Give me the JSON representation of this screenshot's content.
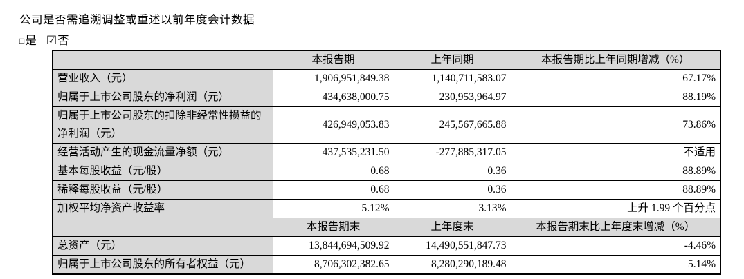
{
  "intro": {
    "question": "公司是否需追溯调整或重述以前年度会计数据",
    "yes_label": "是",
    "no_label": "否",
    "unchecked_glyph": "□",
    "checked_glyph": "☑",
    "yes_checked": false,
    "no_checked": true
  },
  "colors": {
    "cell_gray": "#d9d9d9",
    "border": "#000000",
    "text": "#000000"
  },
  "table": {
    "header1": [
      "",
      "本报告期",
      "上年同期",
      "本报告期比上年同期增减（%）"
    ],
    "rows1": [
      {
        "label": "营业收入（元）",
        "current": "1,906,951,849.38",
        "prior": "1,140,711,583.07",
        "change": "67.17%"
      },
      {
        "label": "归属于上市公司股东的净利润（元）",
        "current": "434,638,000.75",
        "prior": "230,953,964.97",
        "change": "88.19%"
      },
      {
        "label": "归属于上市公司股东的扣除非经常性损益的净利润（元）",
        "current": "426,949,053.83",
        "prior": "245,567,665.88",
        "change": "73.86%"
      },
      {
        "label": "经营活动产生的现金流量净额（元）",
        "current": "437,535,231.50",
        "prior": "-277,885,317.05",
        "change": "不适用"
      },
      {
        "label": "基本每股收益（元/股）",
        "current": "0.68",
        "prior": "0.36",
        "change": "88.89%"
      },
      {
        "label": "稀释每股收益（元/股）",
        "current": "0.68",
        "prior": "0.36",
        "change": "88.89%"
      },
      {
        "label": "加权平均净资产收益率",
        "current": "5.12%",
        "prior": "3.13%",
        "change": "上升 1.99 个百分点"
      }
    ],
    "header2": [
      "",
      "本报告期末",
      "上年度末",
      "本报告期末比上年度末增减（%）"
    ],
    "rows2": [
      {
        "label": "总资产（元）",
        "current": "13,844,694,509.92",
        "prior": "14,490,551,847.73",
        "change": "-4.46%"
      },
      {
        "label": "归属于上市公司股东的所有者权益（元）",
        "current": "8,706,302,382.65",
        "prior": "8,280,290,189.48",
        "change": "5.14%"
      }
    ]
  }
}
